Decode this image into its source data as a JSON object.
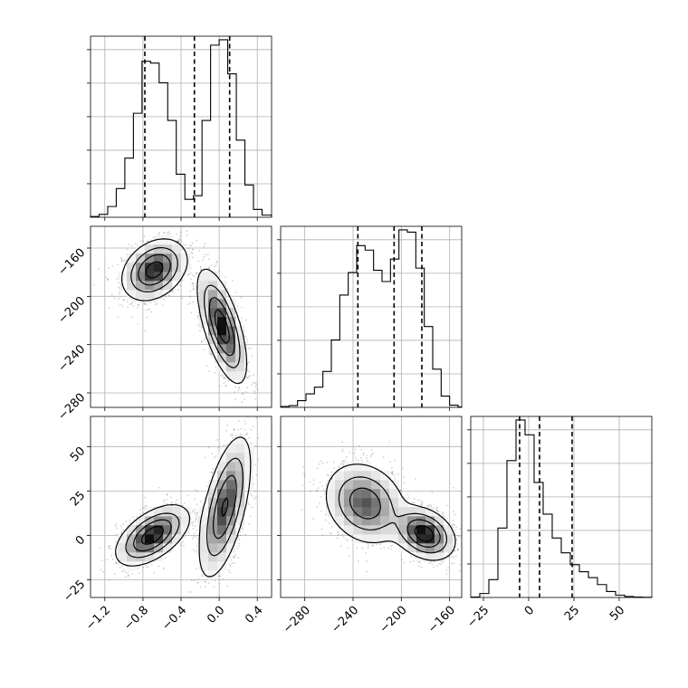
{
  "chart_data": {
    "type": "corner",
    "grid": true,
    "parameters": [
      {
        "xlim": [
          -1.35,
          0.55
        ],
        "ticks": [
          -1.2,
          -0.8,
          -0.4,
          0.0,
          0.4
        ],
        "tick_labels": [
          "−1.2",
          "−0.8",
          "−0.4",
          "0.0",
          "0.4"
        ],
        "quantiles": [
          -0.78,
          -0.26,
          0.11
        ]
      },
      {
        "xlim": [
          -300,
          -150
        ],
        "ticks": [
          -280,
          -240,
          -200,
          -160
        ],
        "tick_labels": [
          "−280",
          "−240",
          "−200",
          "−160"
        ],
        "quantiles": [
          -236,
          -206,
          -183
        ]
      },
      {
        "xlim": [
          -32,
          68
        ],
        "ticks": [
          -25,
          0,
          25,
          50
        ],
        "tick_labels": [
          "−25",
          "0",
          "25",
          "50"
        ],
        "quantiles": [
          -5,
          6,
          24
        ]
      }
    ],
    "histograms": [
      {
        "param": 0,
        "bins": [
          -1.35,
          -1.26,
          -1.17,
          -1.08,
          -0.99,
          -0.9,
          -0.81,
          -0.72,
          -0.63,
          -0.54,
          -0.45,
          -0.36,
          -0.27,
          -0.18,
          -0.09,
          0.0,
          0.09,
          0.18,
          0.27,
          0.36,
          0.45,
          0.55
        ],
        "counts": [
          2,
          8,
          30,
          80,
          165,
          290,
          435,
          430,
          375,
          270,
          120,
          50,
          60,
          270,
          480,
          495,
          400,
          215,
          90,
          22,
          6
        ]
      },
      {
        "param": 1,
        "bins": [
          -300,
          -293,
          -286,
          -279,
          -272,
          -265,
          -258,
          -251,
          -244,
          -237,
          -230,
          -223,
          -216,
          -209,
          -202,
          -195,
          -188,
          -181,
          -174,
          -167,
          -160,
          -153,
          -150
        ],
        "counts": [
          2,
          4,
          15,
          30,
          45,
          80,
          150,
          250,
          300,
          360,
          350,
          305,
          280,
          330,
          395,
          390,
          310,
          180,
          85,
          25,
          5,
          1
        ]
      },
      {
        "param": 2,
        "bins": [
          -32,
          -27,
          -22,
          -17,
          -12,
          -7,
          -2,
          3,
          8,
          13,
          18,
          23,
          28,
          33,
          38,
          43,
          48,
          53,
          58,
          63,
          68
        ],
        "counts": [
          2,
          20,
          90,
          350,
          690,
          895,
          820,
          580,
          420,
          300,
          225,
          165,
          130,
          100,
          65,
          30,
          12,
          5,
          2,
          1
        ]
      }
    ],
    "pairs": [
      {
        "x_param": 0,
        "y_param": 1,
        "ylim": [
          -292,
          -142
        ],
        "y_ticks": [
          -280,
          -240,
          -200,
          -160
        ],
        "y_tick_labels": [
          "−280",
          "−240",
          "−200",
          "−160"
        ],
        "modes": [
          {
            "x": -0.68,
            "y": -178,
            "sx": 0.16,
            "sy": 12,
            "rho": 0.3,
            "w": 1.0
          },
          {
            "x": 0.03,
            "y": -225,
            "sx": 0.12,
            "sy": 22,
            "rho": -0.65,
            "w": 1.05
          }
        ]
      },
      {
        "x_param": 0,
        "y_param": 2,
        "ylim": [
          -35,
          67
        ],
        "y_ticks": [
          -25,
          0,
          25,
          50
        ],
        "y_tick_labels": [
          "−25",
          "0",
          "25",
          "50"
        ],
        "modes": [
          {
            "x": -0.7,
            "y": 0,
            "sx": 0.18,
            "sy": 8,
            "rho": 0.55,
            "w": 1.0
          },
          {
            "x": 0.06,
            "y": 16,
            "sx": 0.13,
            "sy": 19,
            "rho": 0.6,
            "w": 0.85
          }
        ]
      },
      {
        "x_param": 1,
        "y_param": 2,
        "ylim": [
          -35,
          67
        ],
        "modes": [
          {
            "x": -230,
            "y": 18,
            "sx": 16,
            "sy": 11,
            "rho": -0.2,
            "w": 0.75
          },
          {
            "x": -181,
            "y": 1,
            "sx": 12,
            "sy": 7,
            "rho": -0.3,
            "w": 1.0
          }
        ]
      }
    ]
  }
}
